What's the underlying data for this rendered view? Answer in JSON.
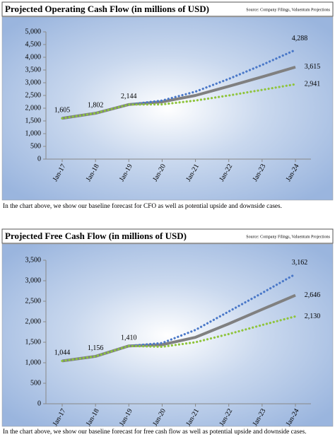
{
  "chart_data": [
    {
      "type": "line",
      "title": "Projected Operating Cash Flow (in millions of USD)",
      "source": "Source: Company Filings, Valuentum Projections",
      "caption": "In the chart above, we show our baseline forecast for CFO as well as potential upside and downside cases.",
      "categories": [
        "Jan-17",
        "Jan-18",
        "Jan-19",
        "Jan-20",
        "Jan-21",
        "Jan-22",
        "Jan-23",
        "Jan-24"
      ],
      "series": [
        {
          "color": "#808080",
          "style": "solid",
          "values": [
            1605,
            1802,
            2144,
            2250,
            2500,
            2860,
            3230,
            3615
          ],
          "value_labels": [
            "1,605",
            "1,802",
            "2,144",
            null,
            null,
            null,
            null,
            "3,615"
          ]
        },
        {
          "color": "#4a78c8",
          "style": "dotted",
          "values": [
            1605,
            1802,
            2144,
            2300,
            2650,
            3150,
            3700,
            4288
          ],
          "value_labels": [
            null,
            null,
            null,
            null,
            null,
            null,
            null,
            "4,288"
          ]
        },
        {
          "color": "#8fc43c",
          "style": "dotted",
          "values": [
            1605,
            1802,
            2144,
            2150,
            2300,
            2500,
            2720,
            2941
          ],
          "value_labels": [
            null,
            null,
            null,
            null,
            null,
            null,
            null,
            "2,941"
          ]
        }
      ],
      "ylim": [
        0,
        5000
      ],
      "yticks": [
        0,
        500,
        {
          "value": 1000,
          "label": "1,000"
        },
        {
          "value": 1500,
          "label": "1,500"
        },
        {
          "value": 2000,
          "label": "2,000"
        },
        {
          "value": 2500,
          "label": "2,500"
        },
        {
          "value": 3000,
          "label": "3,000"
        },
        {
          "value": 3500,
          "label": "3,500"
        },
        {
          "value": 4000,
          "label": "4,000"
        },
        {
          "value": 4500,
          "label": "4,500"
        },
        {
          "value": 5000,
          "label": "5,000"
        }
      ]
    },
    {
      "type": "line",
      "title": "Projected Free Cash Flow (in millions of USD)",
      "source": "Source: Company Filings, Valuentum Projections",
      "caption": "In the chart above, we show our baseline forecast for free cash flow as well as potential upside and downside cases.",
      "categories": [
        "Jan-17",
        "Jan-18",
        "Jan-19",
        "Jan-20",
        "Jan-21",
        "Jan-22",
        "Jan-23",
        "Jan-24"
      ],
      "series": [
        {
          "color": "#808080",
          "style": "solid",
          "values": [
            1044,
            1156,
            1410,
            1440,
            1620,
            1950,
            2300,
            2646
          ],
          "value_labels": [
            "1,044",
            "1,156",
            "1,410",
            null,
            null,
            null,
            null,
            "2,646"
          ]
        },
        {
          "color": "#4a78c8",
          "style": "dotted",
          "values": [
            1044,
            1156,
            1410,
            1480,
            1800,
            2250,
            2700,
            3162
          ],
          "value_labels": [
            null,
            null,
            null,
            null,
            null,
            null,
            null,
            "3,162"
          ]
        },
        {
          "color": "#8fc43c",
          "style": "dotted",
          "values": [
            1044,
            1156,
            1410,
            1390,
            1500,
            1700,
            1920,
            2130
          ],
          "value_labels": [
            null,
            null,
            null,
            null,
            null,
            null,
            null,
            "2,130"
          ]
        }
      ],
      "ylim": [
        0,
        3500
      ],
      "yticks": [
        0,
        500,
        {
          "value": 1000,
          "label": "1,000"
        },
        {
          "value": 1500,
          "label": "1,500"
        },
        {
          "value": 2000,
          "label": "2,000"
        },
        {
          "value": 2500,
          "label": "2,500"
        },
        {
          "value": 3000,
          "label": "3,000"
        },
        {
          "value": 3500,
          "label": "3,500"
        }
      ]
    }
  ]
}
